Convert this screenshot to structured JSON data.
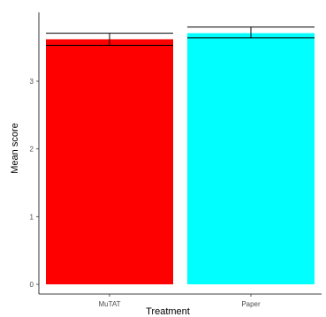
{
  "chart_data": {
    "type": "bar",
    "title": "",
    "xlabel": "Treatment",
    "ylabel": "Mean score",
    "categories": [
      "MuTAT",
      "Paper"
    ],
    "values": [
      3.62,
      3.71
    ],
    "error_bars": [
      {
        "low": 3.53,
        "high": 3.71
      },
      {
        "low": 3.64,
        "high": 3.8
      }
    ],
    "colors": [
      "#ff0000",
      "#00ffff"
    ],
    "ylim": [
      0,
      3.9
    ],
    "yticks": [
      "0",
      "1",
      "2",
      "3"
    ],
    "grid": false,
    "legend": "none"
  }
}
